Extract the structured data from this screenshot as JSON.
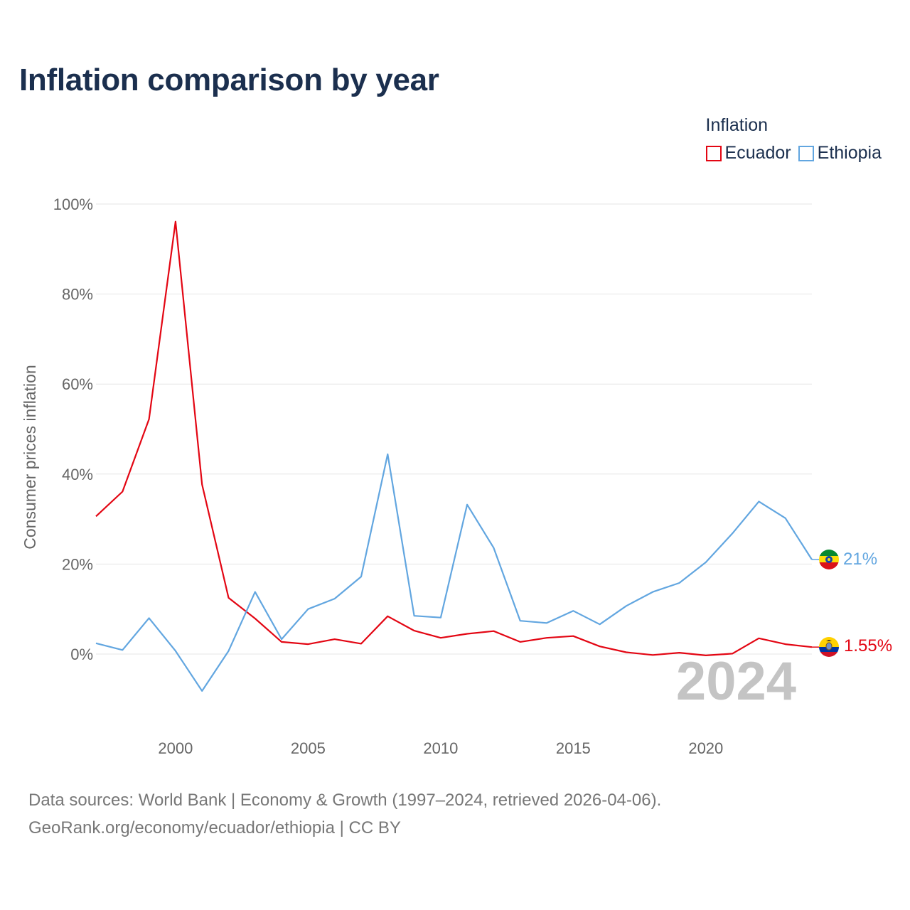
{
  "title": "Inflation comparison by year",
  "legend": {
    "title": "Inflation",
    "items": [
      {
        "label": "Ecuador",
        "color": "#e30613"
      },
      {
        "label": "Ethiopia",
        "color": "#62a6e0"
      }
    ]
  },
  "chart_data": {
    "type": "line",
    "title": "Inflation comparison by year",
    "xlabel": "",
    "ylabel": "Consumer prices inflation",
    "xlim": [
      1997,
      2024
    ],
    "ylim": [
      -15,
      100
    ],
    "x_ticks": [
      2000,
      2005,
      2010,
      2015,
      2020
    ],
    "y_ticks": [
      0,
      20,
      40,
      60,
      80,
      100
    ],
    "y_tick_labels": [
      "0%",
      "20%",
      "40%",
      "60%",
      "80%",
      "100%"
    ],
    "grid": true,
    "legend_position": "top-right",
    "x": [
      1997,
      1998,
      1999,
      2000,
      2001,
      2002,
      2003,
      2004,
      2005,
      2006,
      2007,
      2008,
      2009,
      2010,
      2011,
      2012,
      2013,
      2014,
      2015,
      2016,
      2017,
      2018,
      2019,
      2020,
      2021,
      2022,
      2023,
      2024
    ],
    "series": [
      {
        "name": "Ecuador",
        "color": "#e30613",
        "values": [
          30.6,
          36.1,
          52.2,
          96.1,
          37.7,
          12.5,
          7.9,
          2.7,
          2.2,
          3.3,
          2.3,
          8.4,
          5.2,
          3.6,
          4.5,
          5.1,
          2.7,
          3.6,
          4.0,
          1.7,
          0.4,
          -0.2,
          0.3,
          -0.3,
          0.1,
          3.5,
          2.2,
          1.55
        ],
        "end_label": "1.55%"
      },
      {
        "name": "Ethiopia",
        "color": "#62a6e0",
        "values": [
          2.4,
          0.9,
          8.0,
          0.7,
          -8.2,
          0.7,
          13.8,
          3.3,
          10.0,
          12.3,
          17.2,
          44.4,
          8.5,
          8.1,
          33.2,
          23.6,
          7.4,
          6.9,
          9.6,
          6.6,
          10.7,
          13.8,
          15.8,
          20.4,
          26.8,
          33.9,
          30.2,
          21.0
        ],
        "end_label": "21%"
      }
    ],
    "annotation": "2024"
  },
  "footer": {
    "line1": "Data sources: World Bank | Economy & Growth (1997–2024, retrieved 2026-04-06).",
    "line2": "GeoRank.org/economy/ecuador/ethiopia | CC BY"
  }
}
